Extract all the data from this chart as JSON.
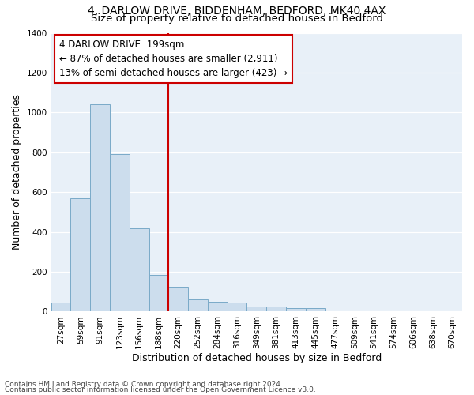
{
  "title_line1": "4, DARLOW DRIVE, BIDDENHAM, BEDFORD, MK40 4AX",
  "title_line2": "Size of property relative to detached houses in Bedford",
  "xlabel": "Distribution of detached houses by size in Bedford",
  "ylabel": "Number of detached properties",
  "bar_color": "#ccdded",
  "bar_edge_color": "#7aaac8",
  "categories": [
    "27sqm",
    "59sqm",
    "91sqm",
    "123sqm",
    "156sqm",
    "188sqm",
    "220sqm",
    "252sqm",
    "284sqm",
    "316sqm",
    "349sqm",
    "381sqm",
    "413sqm",
    "445sqm",
    "477sqm",
    "509sqm",
    "541sqm",
    "574sqm",
    "606sqm",
    "638sqm",
    "670sqm"
  ],
  "values": [
    47,
    570,
    1040,
    790,
    420,
    185,
    125,
    62,
    50,
    47,
    25,
    25,
    18,
    18,
    0,
    0,
    0,
    0,
    0,
    0,
    0
  ],
  "ylim": [
    0,
    1400
  ],
  "yticks": [
    0,
    200,
    400,
    600,
    800,
    1000,
    1200,
    1400
  ],
  "vline_index": 5.5,
  "vline_color": "#cc0000",
  "annotation_text": "4 DARLOW DRIVE: 199sqm\n← 87% of detached houses are smaller (2,911)\n13% of semi-detached houses are larger (423) →",
  "background_color": "#e8f0f8",
  "footer_text1": "Contains HM Land Registry data © Crown copyright and database right 2024.",
  "footer_text2": "Contains public sector information licensed under the Open Government Licence v3.0.",
  "title_fontsize": 10,
  "subtitle_fontsize": 9.5,
  "label_fontsize": 9,
  "tick_fontsize": 7.5,
  "annotation_fontsize": 8.5,
  "footer_fontsize": 6.5
}
